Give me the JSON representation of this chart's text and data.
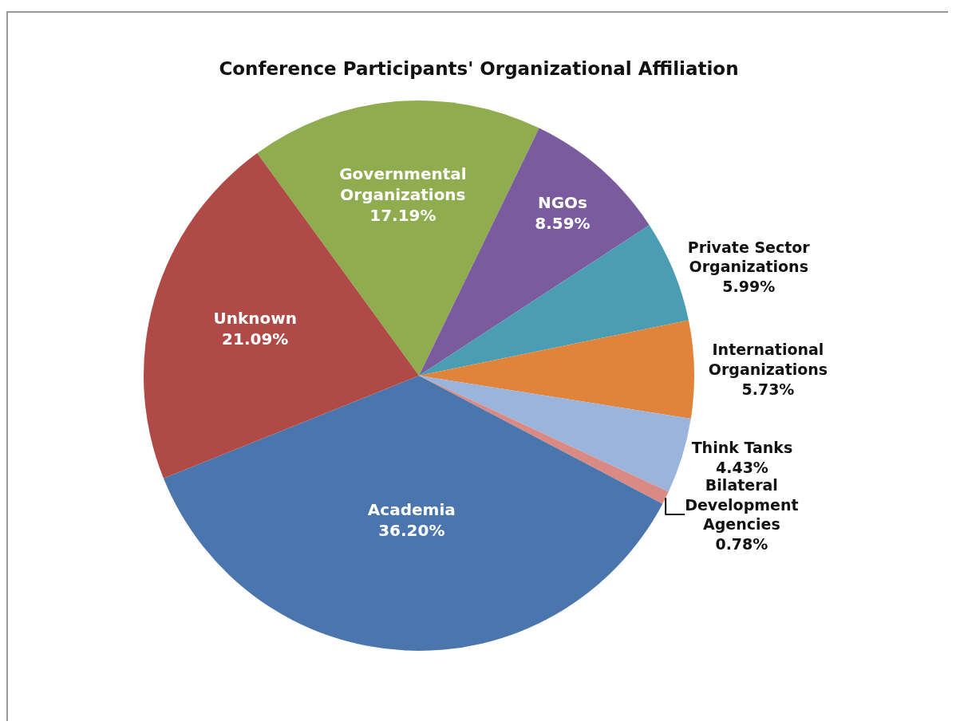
{
  "chart_data": {
    "type": "pie",
    "title": "Conference Participants' Organizational Affiliation",
    "categories": [
      "Governmental Organizations",
      "NGOs",
      "Private Sector Organizations",
      "International Organizations",
      "Think Tanks",
      "Bilateral Development Agencies",
      "Academia",
      "Unknown"
    ],
    "values": [
      17.19,
      8.59,
      5.99,
      5.73,
      4.43,
      0.78,
      36.2,
      21.09
    ],
    "value_labels": [
      "17.19%",
      "8.59%",
      "5.99%",
      "5.73%",
      "4.43%",
      "0.78%",
      "36.20%",
      "21.09%"
    ],
    "colors": [
      "#8fac4e",
      "#7a5c9e",
      "#4a9db3",
      "#e0843c",
      "#9bb4dc",
      "#d98a84",
      "#4a76ad",
      "#b04a47"
    ],
    "legend": false
  }
}
